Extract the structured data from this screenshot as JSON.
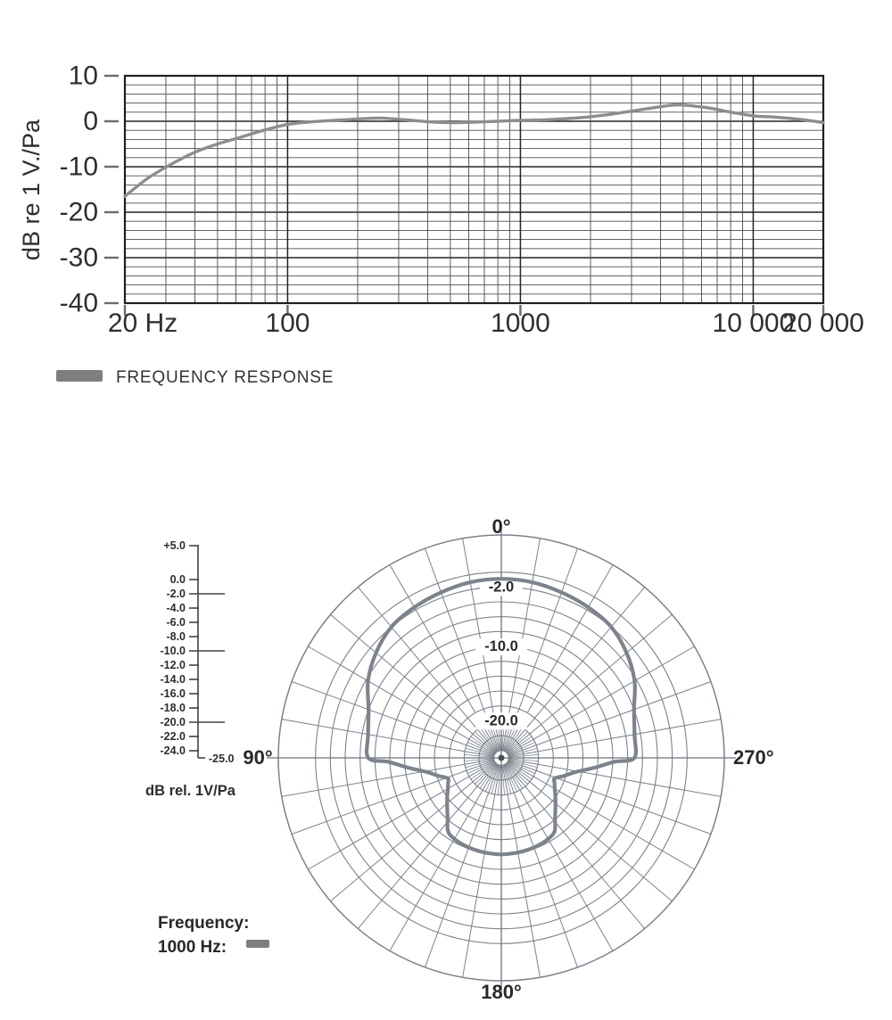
{
  "page": {
    "background": "#ffffff"
  },
  "chart_data": [
    {
      "id": "frequency_response",
      "type": "line",
      "x_scale": "log",
      "xlim": [
        20,
        20000
      ],
      "ylim": [
        -40,
        10
      ],
      "grid": {
        "y_minor_step_db": 2,
        "y_major_step_db": 10,
        "x_minor": "log_decades"
      },
      "ylabel": "dB re 1 V./Pa",
      "x_ticks": {
        "values": [
          20,
          100,
          1000,
          10000,
          20000
        ],
        "labels": [
          "20 Hz",
          "100",
          "1000",
          "10 000",
          "20 000"
        ]
      },
      "y_ticks": {
        "values": [
          10,
          0,
          -10,
          -20,
          -30,
          -40
        ],
        "labels": [
          "10",
          "0",
          "-10",
          "-20",
          "-30",
          "-40"
        ]
      },
      "legend": {
        "label": "FREQUENCY RESPONSE",
        "position": "below-left",
        "swatch_color": "#7f7f7f"
      },
      "series": [
        {
          "name": "FREQUENCY RESPONSE",
          "color": "#8d8d8d",
          "points_hz_db": [
            [
              20,
              -16.5
            ],
            [
              25,
              -12.6
            ],
            [
              31.5,
              -9.5
            ],
            [
              40,
              -6.8
            ],
            [
              50,
              -5.0
            ],
            [
              63,
              -3.5
            ],
            [
              80,
              -1.9
            ],
            [
              100,
              -0.7
            ],
            [
              125,
              -0.15
            ],
            [
              160,
              0.2
            ],
            [
              200,
              0.5
            ],
            [
              250,
              0.7
            ],
            [
              315,
              0.35
            ],
            [
              400,
              -0.1
            ],
            [
              500,
              -0.3
            ],
            [
              630,
              -0.2
            ],
            [
              800,
              0.0
            ],
            [
              1000,
              0.2
            ],
            [
              1250,
              0.3
            ],
            [
              1600,
              0.6
            ],
            [
              2000,
              1.0
            ],
            [
              2500,
              1.6
            ],
            [
              3150,
              2.4
            ],
            [
              4000,
              3.2
            ],
            [
              4800,
              3.6
            ],
            [
              6300,
              3.0
            ],
            [
              8000,
              2.0
            ],
            [
              10000,
              1.2
            ],
            [
              12500,
              0.9
            ],
            [
              16000,
              0.4
            ],
            [
              20000,
              -0.3
            ]
          ]
        }
      ]
    },
    {
      "id": "polar_pattern",
      "type": "line",
      "projection": "polar",
      "outer_ring_db": 5,
      "center_db": -25,
      "rings_db": [
        5,
        0,
        -2,
        -4,
        -6,
        -8,
        -10,
        -12,
        -14,
        -16,
        -18,
        -20,
        -22,
        -24
      ],
      "spoke_step_deg": 10,
      "angle_labels": [
        {
          "pos": "top",
          "label": "0°"
        },
        {
          "pos": "left",
          "label": "90°"
        },
        {
          "pos": "right",
          "label": "270°"
        },
        {
          "pos": "bottom",
          "label": "180°"
        }
      ],
      "ring_labels": [
        {
          "value": -2,
          "label": "-2.0"
        },
        {
          "value": -10,
          "label": "-10.0"
        },
        {
          "value": -20,
          "label": "-20.0"
        }
      ],
      "scale": {
        "unit_label": "dB rel. 1V/Pa",
        "tick_values": [
          5,
          0,
          -2,
          -4,
          -6,
          -8,
          -10,
          -12,
          -14,
          -16,
          -18,
          -20,
          -22,
          -24
        ],
        "tick_labels": [
          "+5.0",
          "0.0",
          "-2.0",
          "-4.0",
          "-6.0",
          "-8.0",
          "-10.0",
          "-12.0",
          "-14.0",
          "-16.0",
          "-18.0",
          "-20.0",
          "-22.0",
          "-24.0"
        ],
        "long_tick_values": [
          -2,
          -10,
          -20
        ],
        "end_label": "-25.0"
      },
      "legend": {
        "line1": "Frequency:",
        "line2": "1000 Hz:",
        "swatch_color": "#7f7f7f"
      },
      "series": [
        {
          "name": "1000 Hz",
          "color": "#7d838c",
          "symmetric": true,
          "points_deg_db": [
            [
              0,
              -0.9
            ],
            [
              10,
              -1.0
            ],
            [
              20,
              -1.3
            ],
            [
              30,
              -1.6
            ],
            [
              40,
              -2.0
            ],
            [
              50,
              -3.0
            ],
            [
              60,
              -4.3
            ],
            [
              70,
              -6.0
            ],
            [
              80,
              -6.8
            ],
            [
              90,
              -7.1
            ],
            [
              92,
              -9.8
            ],
            [
              96,
              -12.4
            ],
            [
              101,
              -14.9
            ],
            [
              106,
              -16.2
            ],
            [
              111,
              -17.3
            ],
            [
              115,
              -17.1
            ],
            [
              120,
              -16.7
            ],
            [
              126,
              -16.0
            ],
            [
              132,
              -15.2
            ],
            [
              138,
              -14.2
            ],
            [
              144,
              -12.8
            ],
            [
              150,
              -12.4
            ],
            [
              158,
              -12.2
            ],
            [
              166,
              -12.1
            ],
            [
              173,
              -12.05
            ],
            [
              180,
              -12.0
            ]
          ]
        }
      ]
    }
  ]
}
